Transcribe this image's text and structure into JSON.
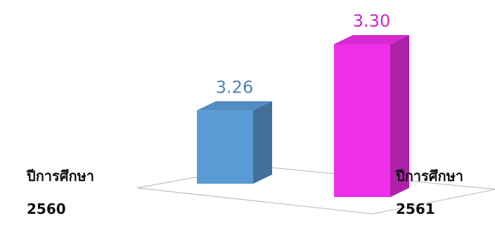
{
  "chart_data": {
    "type": "bar",
    "title": "",
    "xlabel": "",
    "ylabel": "",
    "categories": [
      {
        "line1": "ปีการศึกษา",
        "line2": "2560"
      },
      {
        "line1": "ปีการศึกษา",
        "line2": "2561"
      }
    ],
    "values": [
      3.26,
      3.3
    ],
    "value_labels": [
      "3.26",
      "3.30"
    ],
    "colors": [
      "#5b9bd5",
      "#ee2ee8"
    ],
    "ylim": [
      3.24,
      3.3
    ],
    "grid": false,
    "legend": "none",
    "style": "3d-column"
  }
}
